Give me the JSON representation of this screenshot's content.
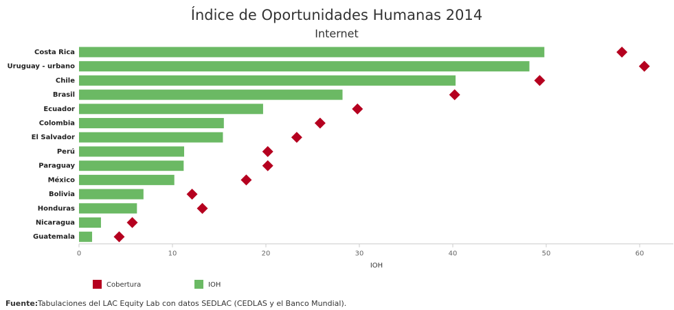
{
  "chart_data": {
    "type": "bar",
    "orientation": "horizontal",
    "title": "Índice de Oportunidades Humanas 2014",
    "subtitle": "Internet",
    "x_label": "IOH",
    "categories": [
      "Costa Rica",
      "Uruguay - urbano",
      "Chile",
      "Brasil",
      "Ecuador",
      "Colombia",
      "El Salvador",
      "Perú",
      "Paraguay",
      "México",
      "Bolivia",
      "Honduras",
      "Nicaragua",
      "Guatemala"
    ],
    "series": [
      {
        "name": "Cobertura",
        "color": "#b5001f",
        "mark": "diamond",
        "values": [
          58.1,
          60.5,
          49.3,
          40.2,
          29.8,
          25.8,
          23.3,
          20.2,
          20.2,
          17.9,
          12.1,
          13.2,
          5.7,
          4.3
        ]
      },
      {
        "name": "IOH",
        "color": "#6bb964",
        "mark": "bar",
        "values": [
          49.8,
          48.2,
          40.3,
          28.2,
          19.7,
          15.5,
          15.4,
          11.25,
          11.2,
          10.2,
          6.9,
          6.2,
          2.35,
          1.4
        ]
      }
    ],
    "xlim": [
      0,
      63.6
    ],
    "xticks": [
      0,
      10,
      20,
      30,
      40,
      50,
      60
    ],
    "grid": false,
    "source": {
      "label": "Fuente:",
      "text": "Tabulaciones del LAC Equity Lab con datos SEDLAC (CEDLAS y el Banco Mundial)."
    }
  }
}
